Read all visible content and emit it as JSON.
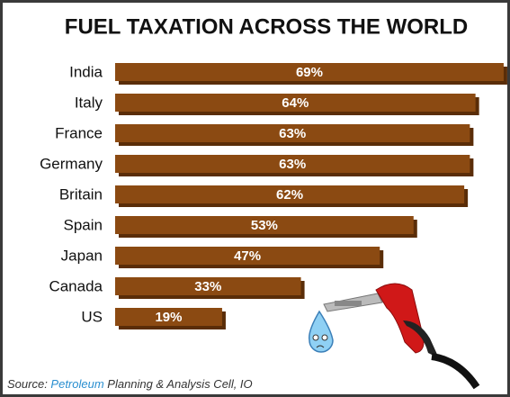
{
  "chart_data": {
    "type": "bar",
    "orientation": "horizontal",
    "title": "FUEL TAXATION ACROSS THE WORLD",
    "categories": [
      "India",
      "Italy",
      "France",
      "Germany",
      "Britain",
      "Spain",
      "Japan",
      "Canada",
      "US"
    ],
    "values": [
      69,
      64,
      63,
      63,
      62,
      53,
      47,
      33,
      19
    ],
    "value_labels": [
      "69%",
      "64%",
      "63%",
      "63%",
      "62%",
      "53%",
      "47%",
      "33%",
      "19%"
    ],
    "color": "#8b4a12",
    "source": [
      "Source: ",
      "Petroleum",
      " Planning & Analysis Cell, IO"
    ]
  }
}
